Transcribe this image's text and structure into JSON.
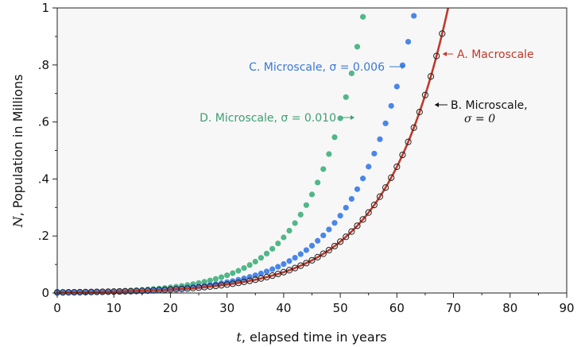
{
  "chart_data": {
    "type": "scatter",
    "xlabel_var": "t",
    "xlabel_rest": ", elapsed time in years",
    "ylabel_var": "N",
    "ylabel_rest": ", Population in Millions",
    "xlim": [
      0,
      90
    ],
    "ylim": [
      0,
      1
    ],
    "x_ticks": [
      "0",
      "10",
      "20",
      "30",
      "40",
      "50",
      "60",
      "70",
      "80",
      "90"
    ],
    "y_ticks": [
      "0",
      ".2",
      ".4",
      ".6",
      ".8",
      "1"
    ],
    "grid": false,
    "colors": {
      "macro": "#c0392b",
      "micro0": "#222222",
      "sigma006": "#4a86e8",
      "sigma010": "#52b788",
      "plot_bg": "#f7f7f7"
    },
    "annotations": {
      "A": {
        "text": "A. Macroscale",
        "color": "#c0392b"
      },
      "B": {
        "text": "B. Microscale,",
        "line2": "σ = 0",
        "color": "#111111"
      },
      "C": {
        "text": "C. Microscale, σ = 0.006",
        "color": "#3a78d6"
      },
      "D": {
        "text": "D. Microscale, σ = 0.010",
        "color": "#3f9e74"
      }
    },
    "model": {
      "N0": 0.002,
      "rate_A": 0.09,
      "rate_C": 0.0982,
      "rate_D": 0.1145,
      "t_step": 1
    },
    "series": [
      {
        "name": "A. Macroscale",
        "kind": "line"
      },
      {
        "name": "B. Microscale, σ = 0",
        "kind": "points"
      },
      {
        "name": "C. Microscale, σ = 0.006",
        "kind": "points"
      },
      {
        "name": "D. Microscale, σ = 0.010",
        "kind": "points"
      }
    ]
  }
}
